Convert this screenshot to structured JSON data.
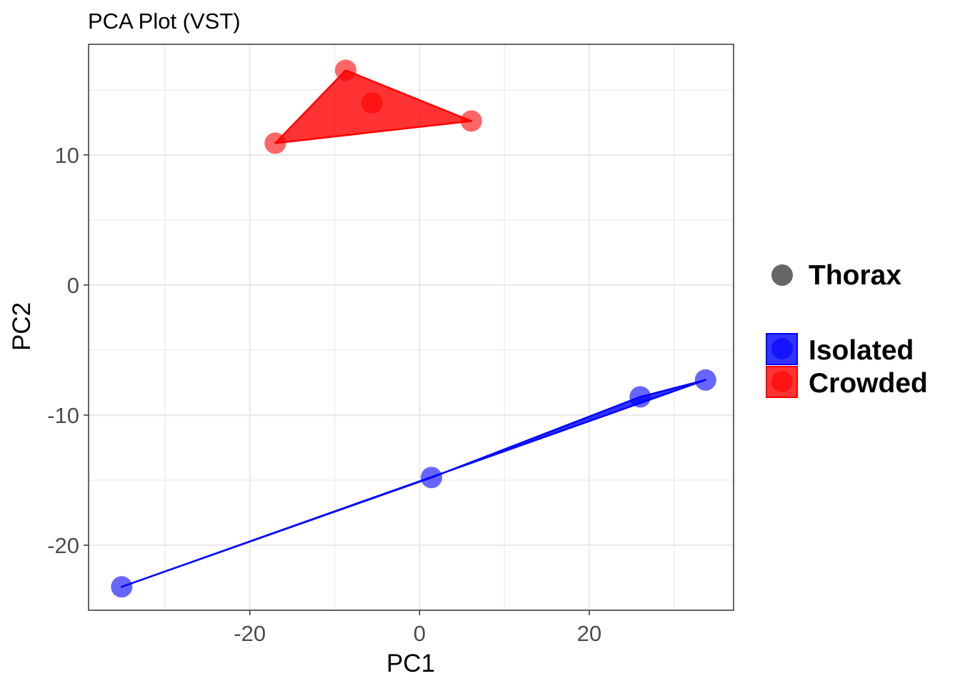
{
  "chart_data": {
    "type": "scatter",
    "title": "PCA Plot (VST)",
    "xlabel": "PC1",
    "ylabel": "PC2",
    "xlim": [
      -39,
      37
    ],
    "ylim": [
      -25,
      18.5
    ],
    "x_ticks": [
      -20,
      0,
      20
    ],
    "y_ticks": [
      -20,
      -10,
      0,
      10
    ],
    "x_minor": [
      -30,
      -10,
      10,
      30
    ],
    "y_minor": [
      -15,
      -5,
      5,
      15
    ],
    "grid": true,
    "legend_position": "right",
    "shape_legend": {
      "label": "Thorax",
      "color": "#666666"
    },
    "series": [
      {
        "name": "Isolated",
        "color": "#0000ff",
        "points": [
          {
            "x": -35.1,
            "y": -23.2
          },
          {
            "x": 1.4,
            "y": -14.8
          },
          {
            "x": 26.0,
            "y": -8.6
          },
          {
            "x": 33.7,
            "y": -7.3
          }
        ],
        "hull": [
          0,
          1,
          2,
          3
        ]
      },
      {
        "name": "Crowded",
        "color": "#ff0000",
        "points": [
          {
            "x": -17.0,
            "y": 10.9
          },
          {
            "x": -8.7,
            "y": 16.5
          },
          {
            "x": -5.6,
            "y": 14.0
          },
          {
            "x": 6.1,
            "y": 12.6
          }
        ],
        "hull": [
          0,
          1,
          3
        ]
      }
    ]
  }
}
